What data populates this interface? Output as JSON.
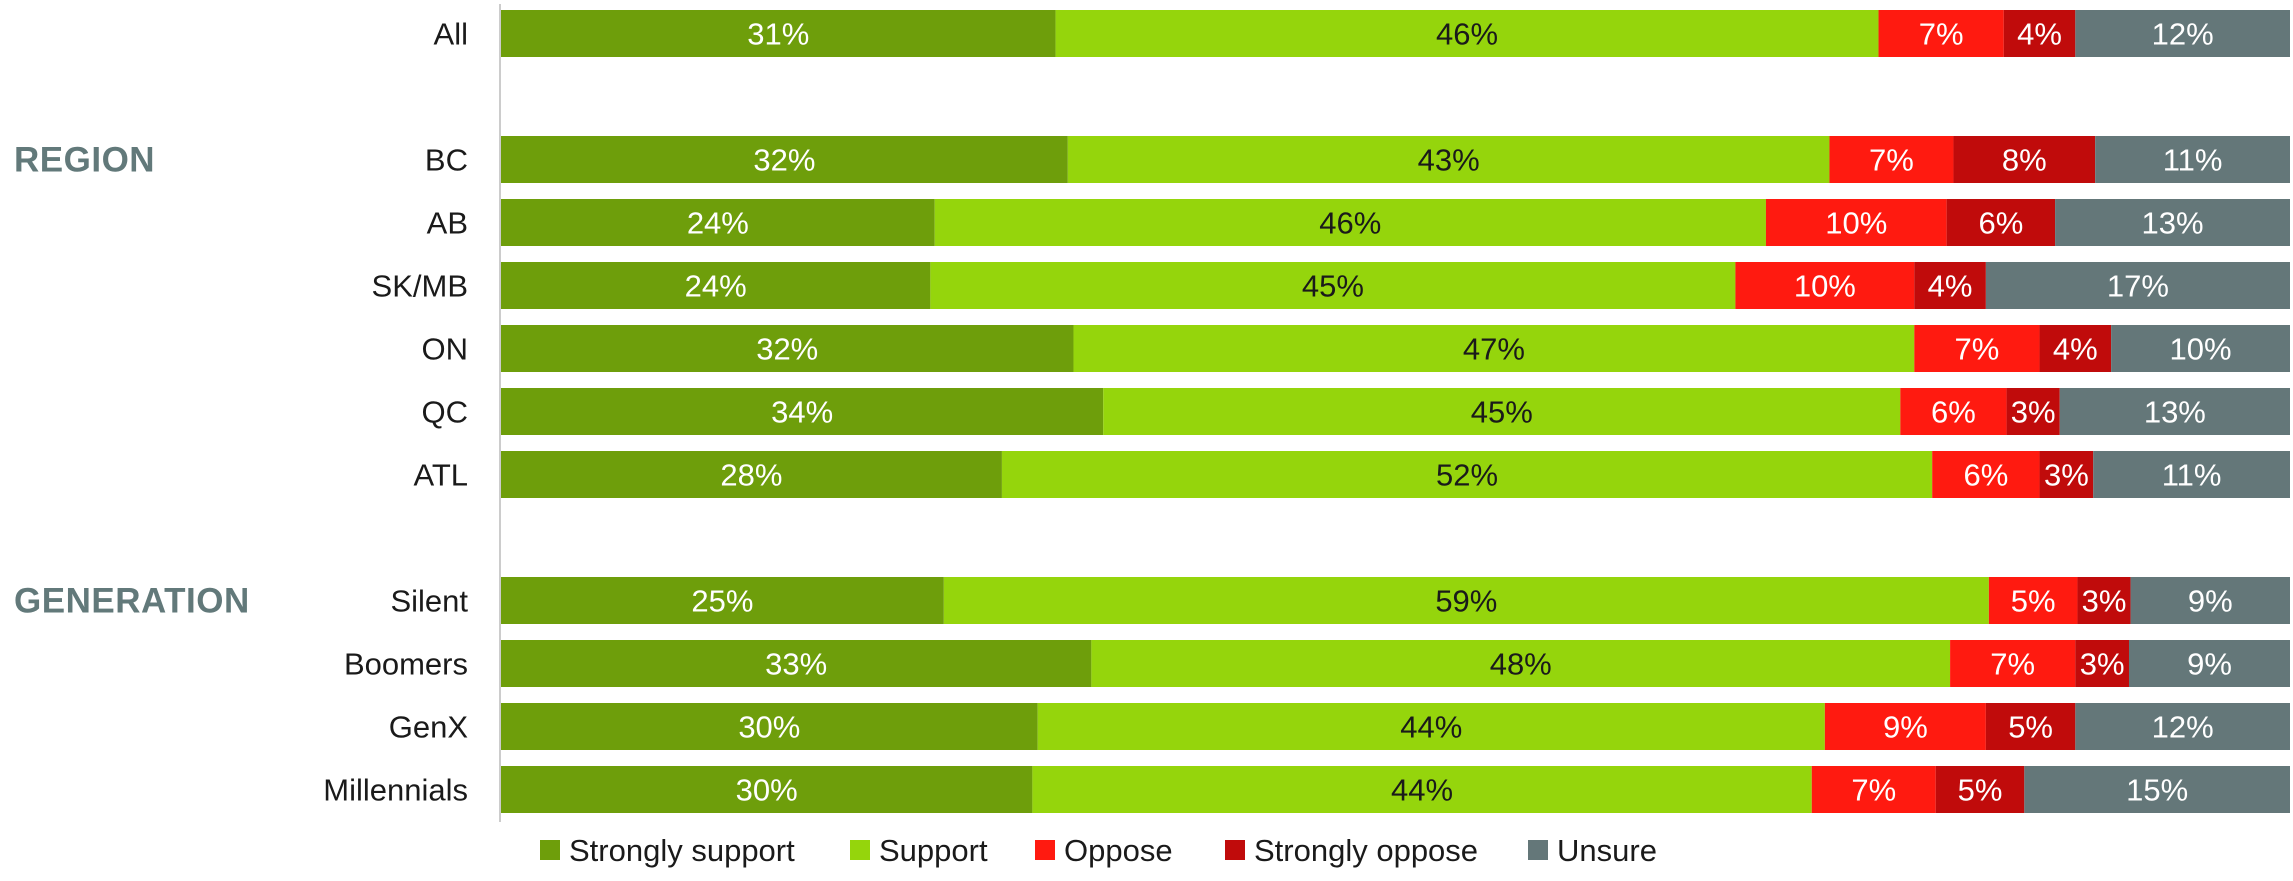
{
  "chart_data": {
    "type": "bar",
    "orientation": "horizontal",
    "stacked": true,
    "title": "",
    "xlabel": "",
    "ylabel": "",
    "legend_position": "bottom",
    "grid": false,
    "series": [
      {
        "name": "Strongly support",
        "color": "#6e9e0b",
        "label_color": "#ffffff"
      },
      {
        "name": "Support",
        "color": "#95d50c",
        "label_color": "#1a1a1a"
      },
      {
        "name": "Oppose",
        "color": "#ff1a10",
        "label_color": "#ffffff"
      },
      {
        "name": "Strongly oppose",
        "color": "#c00b0b",
        "label_color": "#ffffff"
      },
      {
        "name": "Unsure",
        "color": "#647779",
        "label_color": "#ffffff"
      }
    ],
    "groups": [
      {
        "label": "",
        "rows": [
          {
            "category": "All",
            "values": [
              31,
              46,
              7,
              4,
              12
            ],
            "labels": [
              "31%",
              "46%",
              "7%",
              "4%",
              "12%"
            ]
          }
        ]
      },
      {
        "label": "REGION",
        "rows": [
          {
            "category": "BC",
            "values": [
              32,
              43,
              7,
              8,
              11
            ],
            "labels": [
              "32%",
              "43%",
              "7%",
              "8%",
              "11%"
            ]
          },
          {
            "category": "AB",
            "values": [
              24,
              46,
              10,
              6,
              13
            ],
            "labels": [
              "24%",
              "46%",
              "10%",
              "6%",
              "13%"
            ]
          },
          {
            "category": "SK/MB",
            "values": [
              24,
              45,
              10,
              4,
              17
            ],
            "labels": [
              "24%",
              "45%",
              "10%",
              "4%",
              "17%"
            ]
          },
          {
            "category": "ON",
            "values": [
              32,
              47,
              7,
              4,
              10
            ],
            "labels": [
              "32%",
              "47%",
              "7%",
              "4%",
              "10%"
            ]
          },
          {
            "category": "QC",
            "values": [
              34,
              45,
              6,
              3,
              13
            ],
            "labels": [
              "34%",
              "45%",
              "6%",
              "3%",
              "13%"
            ]
          },
          {
            "category": "ATL",
            "values": [
              28,
              52,
              6,
              3,
              11
            ],
            "labels": [
              "28%",
              "52%",
              "6%",
              "3%",
              "11%"
            ]
          }
        ]
      },
      {
        "label": "GENERATION",
        "rows": [
          {
            "category": "Silent",
            "values": [
              25,
              59,
              5,
              3,
              9
            ],
            "labels": [
              "25%",
              "59%",
              "5%",
              "3%",
              "9%"
            ]
          },
          {
            "category": "Boomers",
            "values": [
              33,
              48,
              7,
              3,
              9
            ],
            "labels": [
              "33%",
              "48%",
              "7%",
              "3%",
              "9%"
            ]
          },
          {
            "category": "GenX",
            "values": [
              30,
              44,
              9,
              5,
              12
            ],
            "labels": [
              "30%",
              "44%",
              "9%",
              "5%",
              "12%"
            ]
          },
          {
            "category": "Millennials",
            "values": [
              30,
              44,
              7,
              5,
              15
            ],
            "labels": [
              "30%",
              "44%",
              "7%",
              "5%",
              "15%"
            ]
          }
        ]
      }
    ]
  }
}
